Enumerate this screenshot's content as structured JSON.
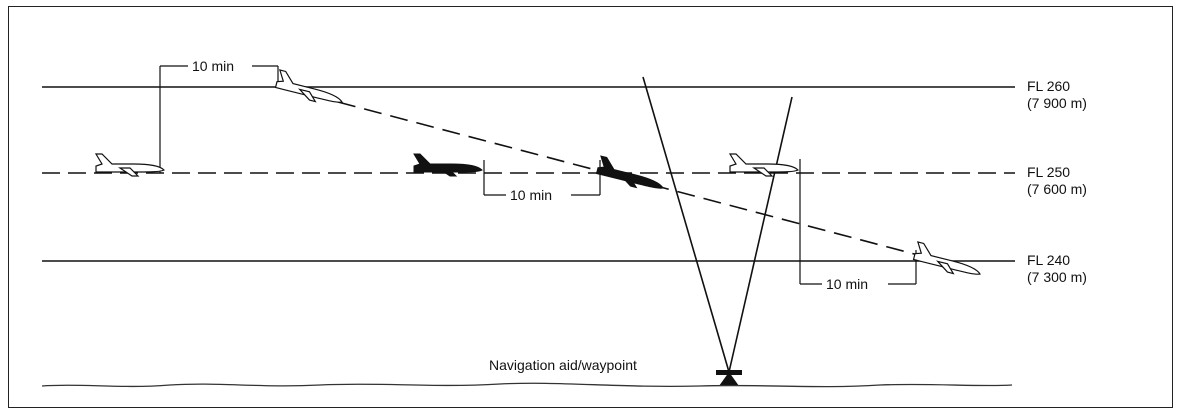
{
  "flight_levels": [
    {
      "name": "FL 260",
      "altitude": "(7 900 m)"
    },
    {
      "name": "FL 250",
      "altitude": "(7 600 m)"
    },
    {
      "name": "FL 240",
      "altitude": "(7 300 m)"
    }
  ],
  "separation_labels": [
    "10 min",
    "10 min",
    "10 min"
  ],
  "navaid_label": "Navigation aid/waypoint"
}
